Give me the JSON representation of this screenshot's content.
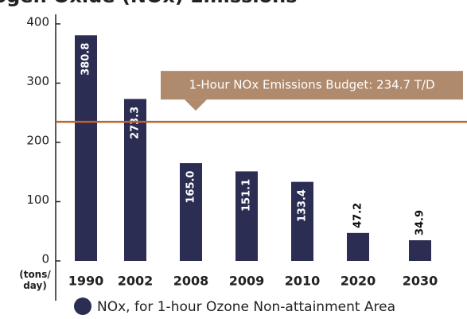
{
  "chart_data": {
    "type": "bar",
    "title": "Nitrogen Oxide (NOx) Emissions",
    "ylabel": "(tons/ day)",
    "categories": [
      "1990",
      "2002",
      "2008",
      "2009",
      "2010",
      "2020",
      "2030"
    ],
    "series": [
      {
        "name": "NOx, for 1-hour Ozone Non-attainment Area",
        "color": "#2b2d52",
        "values": [
          380.8,
          273.3,
          165,
          151.1,
          133.4,
          47.2,
          34.9
        ],
        "value_labels": [
          "380.8",
          "273.3",
          "165.0",
          "151.1",
          "133.4",
          "47.2",
          "34.9"
        ]
      }
    ],
    "ylim": [
      0,
      400
    ],
    "yticks": [
      0,
      100,
      200,
      300,
      400
    ],
    "reference_line": {
      "value": 234.7,
      "label": "1-Hour NOx Emissions Budget: 234.7 T/D",
      "color": "#c0622a"
    }
  }
}
